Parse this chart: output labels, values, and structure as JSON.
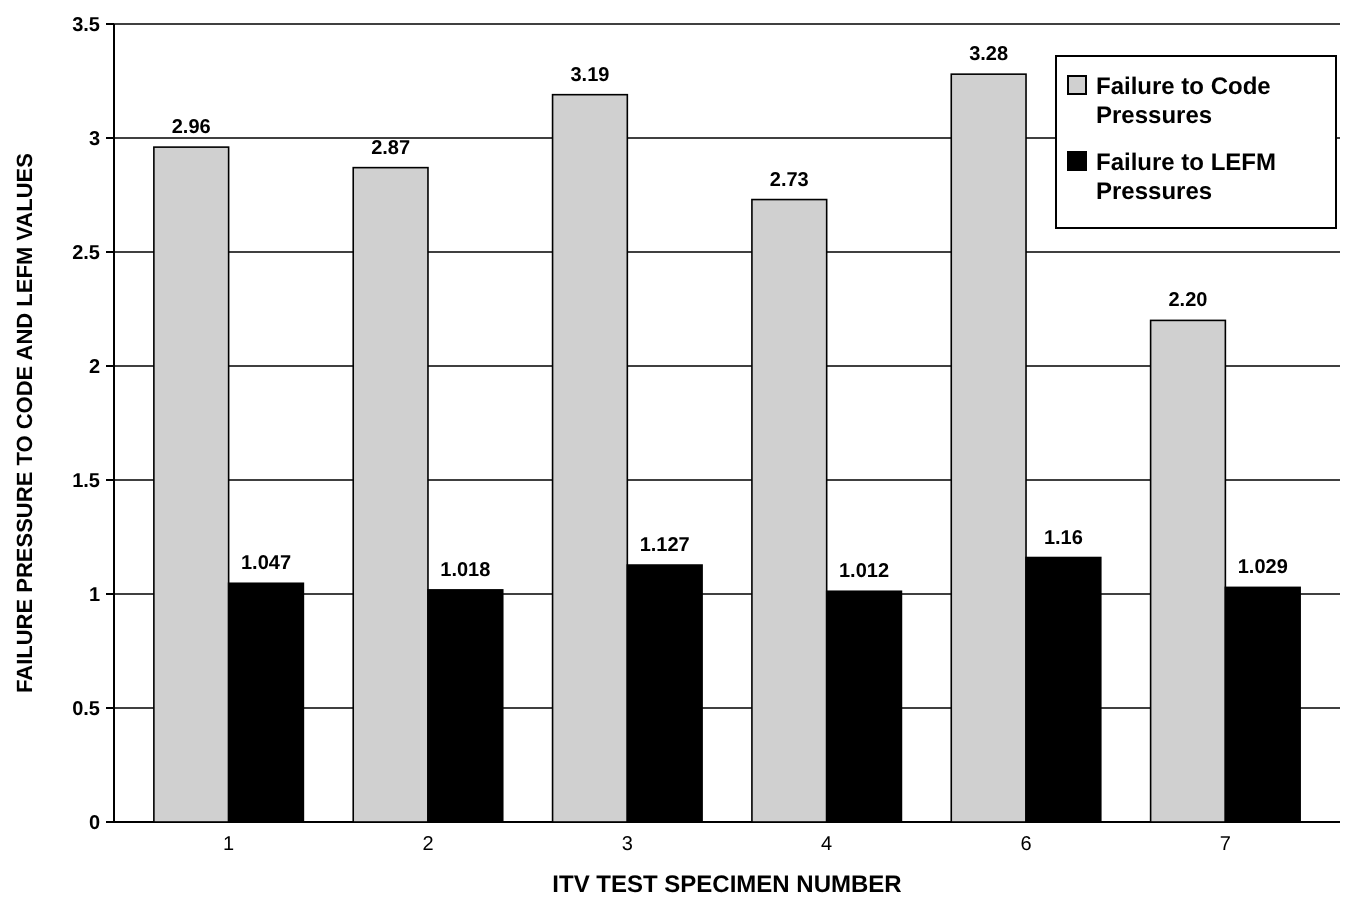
{
  "chart_data": {
    "type": "bar",
    "xlabel": "ITV TEST SPECIMEN NUMBER",
    "ylabel": "FAILURE PRESSURE TO CODE AND LEFM VALUES",
    "categories": [
      "1",
      "2",
      "3",
      "4",
      "6",
      "7"
    ],
    "series": [
      {
        "name": "Failure to Code Pressures",
        "color": "#d0d0d0",
        "values": [
          2.96,
          2.87,
          3.19,
          2.73,
          3.28,
          2.2
        ],
        "value_labels": [
          "2.96",
          "2.87",
          "3.19",
          "2.73",
          "3.28",
          "2.20"
        ]
      },
      {
        "name": "Failure to LEFM Pressures",
        "color": "#000000",
        "values": [
          1.047,
          1.018,
          1.127,
          1.012,
          1.16,
          1.029
        ],
        "value_labels": [
          "1.047",
          "1.018",
          "1.127",
          "1.012",
          "1.16",
          "1.029"
        ]
      }
    ],
    "ylim": [
      0,
      3.5
    ],
    "yticks": [
      0,
      0.5,
      1,
      1.5,
      2,
      2.5,
      3,
      3.5
    ],
    "grid": "y",
    "legend": "top right"
  }
}
